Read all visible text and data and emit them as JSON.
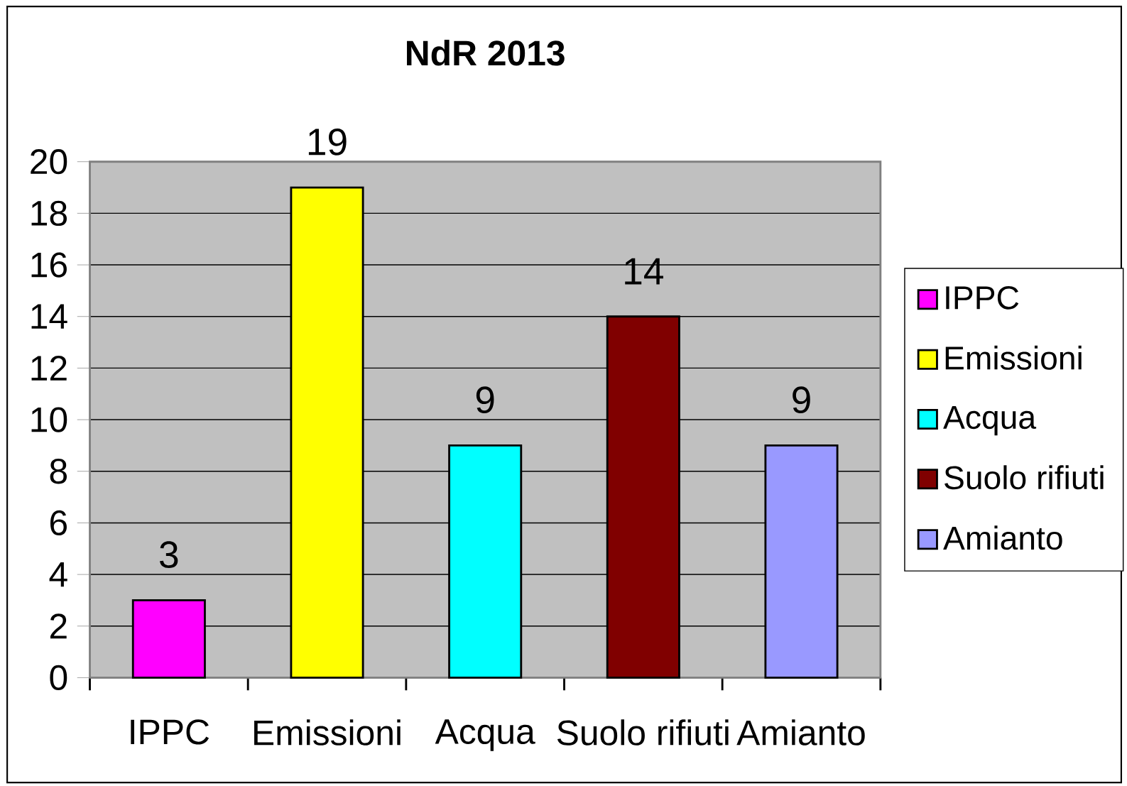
{
  "chart_data": {
    "type": "bar",
    "title": "NdR 2013",
    "categories": [
      "IPPC",
      "Emissioni",
      "Acqua",
      "Suolo rifiuti",
      "Amianto"
    ],
    "series": [
      {
        "name": "IPPC",
        "color": "#ff00ff",
        "values": [
          3,
          null,
          null,
          null,
          null
        ]
      },
      {
        "name": "Emissioni",
        "color": "#ffff00",
        "values": [
          null,
          19,
          null,
          null,
          null
        ]
      },
      {
        "name": "Acqua",
        "color": "#00ffff",
        "values": [
          null,
          null,
          9,
          null,
          null
        ]
      },
      {
        "name": "Suolo rifiuti",
        "color": "#800000",
        "values": [
          null,
          null,
          null,
          14,
          null
        ]
      },
      {
        "name": "Amianto",
        "color": "#9999ff",
        "values": [
          null,
          null,
          null,
          null,
          9
        ]
      }
    ],
    "ylim": [
      0,
      20
    ],
    "yticks": [
      0,
      2,
      4,
      6,
      8,
      10,
      12,
      14,
      16,
      18,
      20
    ],
    "grid": "y",
    "legend": "right",
    "data_labels": true
  }
}
